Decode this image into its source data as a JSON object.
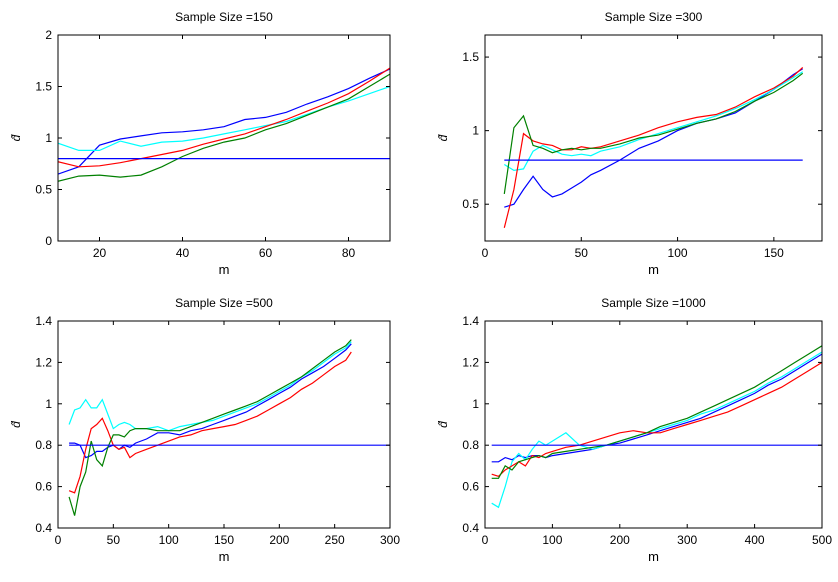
{
  "chart_data": [
    {
      "type": "line",
      "title": "Sample Size =150",
      "xlabel": "m",
      "ylabel": "d̂",
      "xlim": [
        10,
        90
      ],
      "ylim": [
        0,
        2
      ],
      "xticks": [
        "20",
        "40",
        "60",
        "80"
      ],
      "yticks": [
        "0",
        "0.5",
        "1",
        "1.5",
        "2"
      ],
      "grid": false,
      "series": [
        {
          "color": "#0000ff",
          "x": [
            10,
            15,
            20,
            25,
            30,
            35,
            40,
            45,
            50,
            55,
            60,
            65,
            70,
            75,
            80,
            85,
            90
          ],
          "y": [
            0.65,
            0.72,
            0.93,
            0.99,
            1.02,
            1.05,
            1.06,
            1.08,
            1.11,
            1.18,
            1.2,
            1.25,
            1.33,
            1.4,
            1.48,
            1.58,
            1.67
          ]
        },
        {
          "color": "#00ffff",
          "x": [
            10,
            15,
            20,
            25,
            30,
            35,
            40,
            45,
            50,
            55,
            60,
            65,
            70,
            75,
            80,
            85,
            90
          ],
          "y": [
            0.95,
            0.88,
            0.88,
            0.97,
            0.92,
            0.96,
            0.97,
            1.0,
            1.04,
            1.08,
            1.12,
            1.16,
            1.23,
            1.3,
            1.36,
            1.43,
            1.5
          ]
        },
        {
          "color": "#ff0000",
          "x": [
            10,
            15,
            20,
            25,
            30,
            35,
            40,
            45,
            50,
            55,
            60,
            65,
            70,
            75,
            80,
            85,
            90
          ],
          "y": [
            0.77,
            0.72,
            0.73,
            0.76,
            0.8,
            0.84,
            0.88,
            0.94,
            0.99,
            1.04,
            1.11,
            1.18,
            1.26,
            1.34,
            1.43,
            1.55,
            1.68
          ]
        },
        {
          "color": "#008000",
          "x": [
            10,
            15,
            20,
            25,
            30,
            35,
            40,
            45,
            50,
            55,
            60,
            65,
            70,
            75,
            80,
            85,
            90
          ],
          "y": [
            0.58,
            0.63,
            0.64,
            0.62,
            0.64,
            0.72,
            0.82,
            0.9,
            0.96,
            1.0,
            1.08,
            1.14,
            1.22,
            1.3,
            1.38,
            1.5,
            1.62
          ]
        },
        {
          "color": "#0000ff",
          "x": [
            10,
            90
          ],
          "y": [
            0.8,
            0.8
          ]
        }
      ]
    },
    {
      "type": "line",
      "title": "Sample Size =300",
      "xlabel": "m",
      "ylabel": "d̂",
      "xlim": [
        0,
        175
      ],
      "ylim": [
        0.25,
        1.65
      ],
      "xticks": [
        "0",
        "50",
        "100",
        "150"
      ],
      "yticks": [
        "0.5",
        "1",
        "1.5"
      ],
      "grid": false,
      "series": [
        {
          "color": "#0000ff",
          "x": [
            10,
            15,
            20,
            25,
            30,
            35,
            40,
            45,
            50,
            55,
            60,
            70,
            80,
            90,
            100,
            110,
            120,
            130,
            140,
            150,
            160,
            165
          ],
          "y": [
            0.48,
            0.5,
            0.6,
            0.69,
            0.6,
            0.55,
            0.57,
            0.61,
            0.65,
            0.7,
            0.73,
            0.8,
            0.88,
            0.93,
            1.0,
            1.05,
            1.08,
            1.12,
            1.2,
            1.28,
            1.38,
            1.42
          ]
        },
        {
          "color": "#00ffff",
          "x": [
            10,
            15,
            20,
            25,
            30,
            35,
            40,
            45,
            50,
            55,
            60,
            70,
            80,
            90,
            100,
            110,
            120,
            130,
            140,
            150,
            160,
            165
          ],
          "y": [
            0.77,
            0.73,
            0.74,
            0.86,
            0.9,
            0.87,
            0.84,
            0.83,
            0.84,
            0.83,
            0.86,
            0.89,
            0.94,
            0.98,
            1.02,
            1.06,
            1.1,
            1.15,
            1.21,
            1.28,
            1.36,
            1.4
          ]
        },
        {
          "color": "#ff0000",
          "x": [
            10,
            15,
            20,
            25,
            30,
            35,
            40,
            45,
            50,
            55,
            60,
            70,
            80,
            90,
            100,
            110,
            120,
            130,
            140,
            150,
            160,
            165
          ],
          "y": [
            0.34,
            0.6,
            0.98,
            0.93,
            0.91,
            0.9,
            0.87,
            0.87,
            0.89,
            0.88,
            0.89,
            0.93,
            0.97,
            1.02,
            1.06,
            1.09,
            1.11,
            1.16,
            1.23,
            1.29,
            1.37,
            1.43
          ]
        },
        {
          "color": "#008000",
          "x": [
            10,
            15,
            20,
            25,
            30,
            35,
            40,
            45,
            50,
            55,
            60,
            70,
            80,
            90,
            100,
            110,
            120,
            130,
            140,
            150,
            160,
            165
          ],
          "y": [
            0.57,
            1.02,
            1.1,
            0.9,
            0.88,
            0.85,
            0.87,
            0.88,
            0.87,
            0.88,
            0.88,
            0.91,
            0.95,
            0.97,
            1.01,
            1.05,
            1.08,
            1.13,
            1.2,
            1.26,
            1.34,
            1.39
          ]
        },
        {
          "color": "#0000ff",
          "x": [
            10,
            165
          ],
          "y": [
            0.8,
            0.8
          ]
        }
      ]
    },
    {
      "type": "line",
      "title": "Sample Size =500",
      "xlabel": "m",
      "ylabel": "d̂",
      "xlim": [
        0,
        300
      ],
      "ylim": [
        0.4,
        1.4
      ],
      "xticks": [
        "0",
        "50",
        "100",
        "150",
        "200",
        "250",
        "300"
      ],
      "yticks": [
        "0.4",
        "0.6",
        "0.8",
        "1",
        "1.2",
        "1.4"
      ],
      "grid": false,
      "series": [
        {
          "color": "#0000ff",
          "x": [
            10,
            15,
            20,
            25,
            30,
            35,
            40,
            45,
            50,
            55,
            60,
            65,
            70,
            80,
            90,
            100,
            110,
            120,
            130,
            140,
            150,
            160,
            170,
            180,
            190,
            200,
            210,
            220,
            230,
            240,
            250,
            260,
            265
          ],
          "y": [
            0.81,
            0.81,
            0.8,
            0.74,
            0.75,
            0.77,
            0.77,
            0.79,
            0.8,
            0.78,
            0.8,
            0.79,
            0.81,
            0.83,
            0.86,
            0.86,
            0.85,
            0.87,
            0.88,
            0.9,
            0.92,
            0.94,
            0.96,
            0.99,
            1.02,
            1.05,
            1.08,
            1.12,
            1.15,
            1.18,
            1.22,
            1.26,
            1.29
          ]
        },
        {
          "color": "#00ffff",
          "x": [
            10,
            15,
            20,
            25,
            30,
            35,
            40,
            45,
            50,
            55,
            60,
            65,
            70,
            80,
            90,
            100,
            110,
            120,
            130,
            140,
            150,
            160,
            170,
            180,
            190,
            200,
            210,
            220,
            230,
            240,
            250,
            260,
            265
          ],
          "y": [
            0.9,
            0.97,
            0.98,
            1.02,
            0.98,
            0.98,
            1.02,
            0.95,
            0.88,
            0.9,
            0.91,
            0.9,
            0.88,
            0.88,
            0.89,
            0.87,
            0.89,
            0.9,
            0.91,
            0.92,
            0.94,
            0.96,
            0.98,
            1.0,
            1.03,
            1.06,
            1.09,
            1.13,
            1.16,
            1.2,
            1.24,
            1.27,
            1.3
          ]
        },
        {
          "color": "#ff0000",
          "x": [
            10,
            15,
            20,
            25,
            30,
            35,
            40,
            45,
            50,
            55,
            60,
            65,
            70,
            80,
            90,
            100,
            110,
            120,
            130,
            140,
            150,
            160,
            170,
            180,
            190,
            200,
            210,
            220,
            230,
            240,
            250,
            260,
            265
          ],
          "y": [
            0.58,
            0.57,
            0.65,
            0.78,
            0.88,
            0.9,
            0.93,
            0.87,
            0.8,
            0.78,
            0.79,
            0.74,
            0.76,
            0.78,
            0.8,
            0.82,
            0.84,
            0.85,
            0.87,
            0.88,
            0.89,
            0.9,
            0.92,
            0.94,
            0.97,
            1.0,
            1.03,
            1.07,
            1.1,
            1.14,
            1.18,
            1.21,
            1.25
          ]
        },
        {
          "color": "#008000",
          "x": [
            10,
            15,
            20,
            25,
            30,
            35,
            40,
            45,
            50,
            55,
            60,
            65,
            70,
            80,
            90,
            100,
            110,
            120,
            130,
            140,
            150,
            160,
            170,
            180,
            190,
            200,
            210,
            220,
            230,
            240,
            250,
            260,
            265
          ],
          "y": [
            0.55,
            0.46,
            0.6,
            0.67,
            0.82,
            0.73,
            0.7,
            0.79,
            0.85,
            0.85,
            0.84,
            0.87,
            0.88,
            0.88,
            0.87,
            0.87,
            0.87,
            0.89,
            0.91,
            0.93,
            0.95,
            0.97,
            0.99,
            1.01,
            1.04,
            1.07,
            1.1,
            1.13,
            1.17,
            1.21,
            1.25,
            1.28,
            1.31
          ]
        },
        {
          "color": "#0000ff",
          "x": [
            10,
            300
          ],
          "y": [
            0.8,
            0.8
          ]
        }
      ]
    },
    {
      "type": "line",
      "title": "Sample Size =1000",
      "xlabel": "m",
      "ylabel": "d̂",
      "xlim": [
        0,
        500
      ],
      "ylim": [
        0.4,
        1.4
      ],
      "xticks": [
        "0",
        "100",
        "200",
        "300",
        "400",
        "500"
      ],
      "yticks": [
        "0.4",
        "0.6",
        "0.8",
        "1",
        "1.2",
        "1.4"
      ],
      "grid": false,
      "series": [
        {
          "color": "#0000ff",
          "x": [
            10,
            20,
            30,
            40,
            50,
            60,
            70,
            80,
            90,
            100,
            120,
            140,
            160,
            180,
            200,
            220,
            240,
            260,
            280,
            300,
            320,
            340,
            360,
            380,
            400,
            420,
            440,
            460,
            480,
            500
          ],
          "y": [
            0.72,
            0.72,
            0.74,
            0.73,
            0.75,
            0.74,
            0.75,
            0.75,
            0.74,
            0.75,
            0.76,
            0.77,
            0.78,
            0.8,
            0.81,
            0.83,
            0.85,
            0.87,
            0.89,
            0.91,
            0.93,
            0.96,
            0.99,
            1.02,
            1.05,
            1.09,
            1.12,
            1.16,
            1.2,
            1.24
          ]
        },
        {
          "color": "#00ffff",
          "x": [
            10,
            20,
            30,
            40,
            50,
            60,
            70,
            80,
            90,
            100,
            120,
            140,
            160,
            180,
            200,
            220,
            240,
            260,
            280,
            300,
            320,
            340,
            360,
            380,
            400,
            420,
            440,
            460,
            480,
            500
          ],
          "y": [
            0.52,
            0.5,
            0.6,
            0.72,
            0.76,
            0.73,
            0.78,
            0.82,
            0.8,
            0.82,
            0.86,
            0.8,
            0.78,
            0.8,
            0.82,
            0.84,
            0.86,
            0.88,
            0.9,
            0.92,
            0.95,
            0.97,
            1.0,
            1.03,
            1.06,
            1.1,
            1.13,
            1.17,
            1.21,
            1.25
          ]
        },
        {
          "color": "#ff0000",
          "x": [
            10,
            20,
            30,
            40,
            50,
            60,
            70,
            80,
            90,
            100,
            120,
            140,
            160,
            180,
            200,
            220,
            240,
            260,
            280,
            300,
            320,
            340,
            360,
            380,
            400,
            420,
            440,
            460,
            480,
            500
          ],
          "y": [
            0.66,
            0.65,
            0.68,
            0.7,
            0.72,
            0.7,
            0.75,
            0.74,
            0.76,
            0.77,
            0.79,
            0.8,
            0.82,
            0.84,
            0.86,
            0.87,
            0.86,
            0.86,
            0.88,
            0.9,
            0.92,
            0.94,
            0.96,
            0.99,
            1.02,
            1.05,
            1.08,
            1.12,
            1.16,
            1.2
          ]
        },
        {
          "color": "#008000",
          "x": [
            10,
            20,
            30,
            40,
            50,
            60,
            70,
            80,
            90,
            100,
            120,
            140,
            160,
            180,
            200,
            220,
            240,
            260,
            280,
            300,
            320,
            340,
            360,
            380,
            400,
            420,
            440,
            460,
            480,
            500
          ],
          "y": [
            0.64,
            0.64,
            0.7,
            0.68,
            0.72,
            0.73,
            0.74,
            0.75,
            0.74,
            0.76,
            0.77,
            0.78,
            0.79,
            0.8,
            0.82,
            0.84,
            0.86,
            0.89,
            0.91,
            0.93,
            0.96,
            0.99,
            1.02,
            1.05,
            1.08,
            1.12,
            1.16,
            1.2,
            1.24,
            1.28
          ]
        },
        {
          "color": "#0000ff",
          "x": [
            10,
            500
          ],
          "y": [
            0.8,
            0.8
          ]
        }
      ]
    }
  ]
}
